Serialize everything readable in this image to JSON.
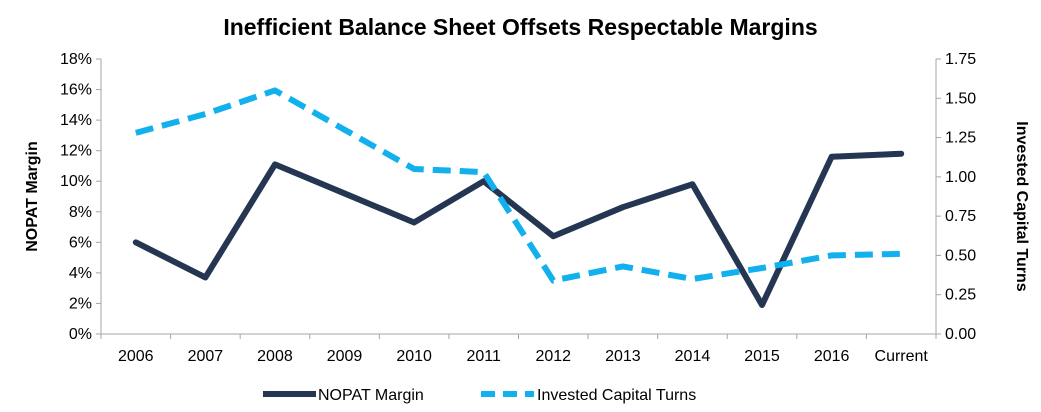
{
  "colors": {
    "nopat": "#243652",
    "turns": "#12b1ed",
    "axis": "#a6a6a6"
  },
  "chart_data": {
    "type": "line",
    "title": "Inefficient Balance Sheet Offsets Respectable Margins",
    "categories": [
      "2006",
      "2007",
      "2008",
      "2009",
      "2010",
      "2011",
      "2012",
      "2013",
      "2014",
      "2015",
      "2016",
      "Current"
    ],
    "y_left": {
      "label": "NOPAT Margin",
      "ticks": [
        "0%",
        "2%",
        "4%",
        "6%",
        "8%",
        "10%",
        "12%",
        "14%",
        "16%",
        "18%"
      ],
      "range": [
        0,
        18
      ]
    },
    "y_right": {
      "label": "Invested Capital Turns",
      "ticks": [
        "0.00",
        "0.25",
        "0.50",
        "0.75",
        "1.00",
        "1.25",
        "1.50",
        "1.75"
      ],
      "range": [
        0,
        1.75
      ]
    },
    "series": [
      {
        "name": "NOPAT Margin",
        "axis": "left",
        "style": "solid",
        "values": [
          6.0,
          3.7,
          11.1,
          9.2,
          7.3,
          10.0,
          6.4,
          8.3,
          9.8,
          1.9,
          11.6,
          11.8
        ]
      },
      {
        "name": "Invested Capital Turns",
        "axis": "right",
        "style": "dashed",
        "values": [
          1.28,
          1.4,
          1.55,
          1.3,
          1.05,
          1.03,
          0.34,
          0.43,
          0.35,
          0.42,
          0.5,
          0.51
        ]
      }
    ],
    "grid": false,
    "legend_position": "bottom"
  }
}
